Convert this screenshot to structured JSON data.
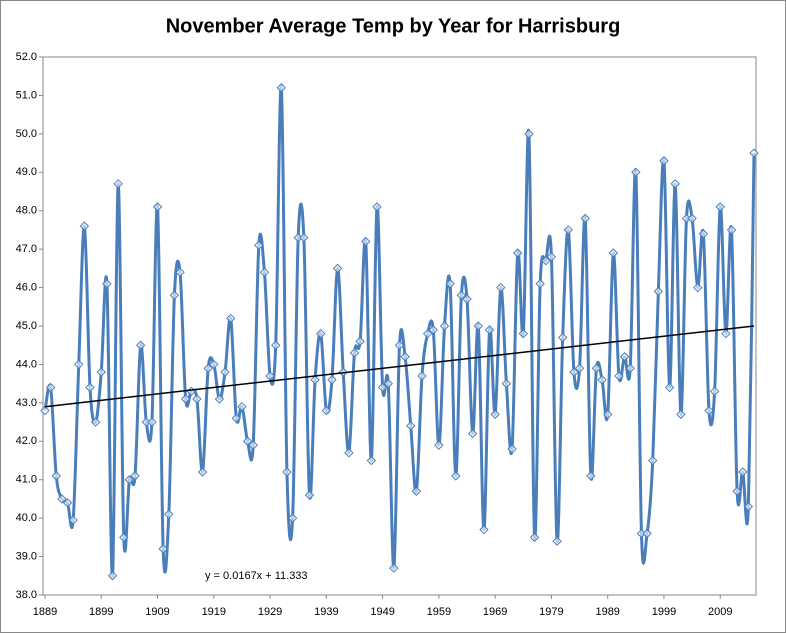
{
  "chart_data": {
    "type": "line",
    "title": "November Average Temp by Year for Harrisburg",
    "categories": [
      "1889",
      null,
      null,
      null,
      null,
      null,
      null,
      null,
      null,
      null,
      "1899",
      null,
      null,
      null,
      null,
      null,
      null,
      null,
      null,
      null,
      "1909",
      null,
      null,
      null,
      null,
      null,
      null,
      null,
      null,
      null,
      "1919",
      null,
      null,
      null,
      null,
      null,
      null,
      null,
      null,
      null,
      "1929",
      null,
      null,
      null,
      null,
      null,
      null,
      null,
      null,
      null,
      "1939",
      null,
      null,
      null,
      null,
      null,
      null,
      null,
      null,
      null,
      "1949",
      null,
      null,
      null,
      null,
      null,
      null,
      null,
      null,
      null,
      "1959",
      null,
      null,
      null,
      null,
      null,
      null,
      null,
      null,
      null,
      "1969",
      null,
      null,
      null,
      null,
      null,
      null,
      null,
      null,
      null,
      "1979",
      null,
      null,
      null,
      null,
      null,
      null,
      null,
      null,
      null,
      "1989",
      null,
      null,
      null,
      null,
      null,
      null,
      null,
      null,
      null,
      "1999",
      null,
      null,
      null,
      null,
      null,
      null,
      null,
      null,
      null,
      "2009",
      null,
      null,
      null,
      null,
      null,
      null
    ],
    "series": [
      {
        "name": "November Average Temp",
        "color": "#4a7ebb",
        "values": [
          42.8,
          43.4,
          41.1,
          40.5,
          40.4,
          39.95,
          44.0,
          47.6,
          43.4,
          42.5,
          43.8,
          46.1,
          38.5,
          48.7,
          39.5,
          41.0,
          41.1,
          44.5,
          42.5,
          42.5,
          48.1,
          39.2,
          40.1,
          45.8,
          46.4,
          43.1,
          43.3,
          43.1,
          41.2,
          43.9,
          44.0,
          43.1,
          43.8,
          45.2,
          42.6,
          42.9,
          42.0,
          41.9,
          47.1,
          46.4,
          43.7,
          44.5,
          51.2,
          41.2,
          40.0,
          47.3,
          47.3,
          40.6,
          43.6,
          44.8,
          42.8,
          43.6,
          46.5,
          43.8,
          41.7,
          44.3,
          44.6,
          47.2,
          41.5,
          48.1,
          43.4,
          43.5,
          38.7,
          44.5,
          44.2,
          42.4,
          40.7,
          43.7,
          44.8,
          44.9,
          41.9,
          45.0,
          46.1,
          41.1,
          45.8,
          45.7,
          42.2,
          45.0,
          39.7,
          44.9,
          42.7,
          46.0,
          43.5,
          41.8,
          46.9,
          44.8,
          50.0,
          39.5,
          46.1,
          46.7,
          46.8,
          39.4,
          44.7,
          47.5,
          43.8,
          43.9,
          47.8,
          41.1,
          43.9,
          43.6,
          42.7,
          46.9,
          43.7,
          44.2,
          43.9,
          49.0,
          39.6,
          39.6,
          41.5,
          45.9,
          49.3,
          43.4,
          48.7,
          42.7,
          47.8,
          47.8,
          46.0,
          47.4,
          42.8,
          43.3,
          48.1,
          44.8,
          47.5,
          40.7,
          41.2,
          40.3,
          49.5
        ]
      }
    ],
    "trendline": {
      "label": "y = 0.0167x + 11.333",
      "values": [
        42.9,
        45.0
      ],
      "color": "#000000"
    },
    "ylim": [
      38,
      52
    ],
    "yticks": [
      {
        "value": 38,
        "label": "38.0"
      },
      {
        "value": 39,
        "label": "39.0"
      },
      {
        "value": 40,
        "label": "40.0"
      },
      {
        "value": 41,
        "label": "41.0"
      },
      {
        "value": 42,
        "label": "42.0"
      },
      {
        "value": 43,
        "label": "43.0"
      },
      {
        "value": 44,
        "label": "44.0"
      },
      {
        "value": 45,
        "label": "45.0"
      },
      {
        "value": 46,
        "label": "46.0"
      },
      {
        "value": 47,
        "label": "47.0"
      },
      {
        "value": 48,
        "label": "48.0"
      },
      {
        "value": 49,
        "label": "49.0"
      },
      {
        "value": 50,
        "label": "50.0"
      },
      {
        "value": 51,
        "label": "51.0"
      },
      {
        "value": 52,
        "label": "52.0"
      }
    ],
    "grid": false,
    "smooth": true,
    "markers": "diamond"
  }
}
